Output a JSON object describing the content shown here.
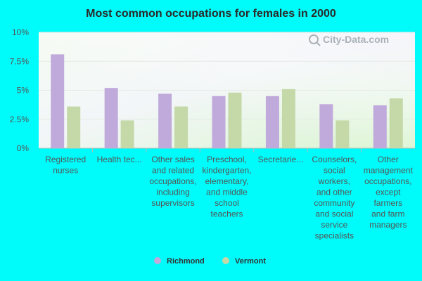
{
  "watermark": "City-Data.com",
  "colors": {
    "background": "#00fbfb",
    "richmond": "#c0aadb",
    "vermont": "#c5d9a8"
  },
  "chart_data": {
    "type": "bar",
    "title": "Most common occupations for females in 2000",
    "xlabel": "",
    "ylabel": "",
    "ylim": [
      0,
      10
    ],
    "yticks": [
      {
        "value": 0,
        "label": "0%"
      },
      {
        "value": 2.5,
        "label": "2.5%"
      },
      {
        "value": 5,
        "label": "5%"
      },
      {
        "value": 7.5,
        "label": "7.5%"
      },
      {
        "value": 10,
        "label": "10%"
      }
    ],
    "grid": true,
    "legend": "bottom",
    "categories": [
      [
        "Registered",
        "nurses"
      ],
      [
        "Health tec..."
      ],
      [
        "Other sales",
        "and related",
        "occupations,",
        "including",
        "supervisors"
      ],
      [
        "Preschool,",
        "kindergarten,",
        "elementary,",
        "and middle",
        "school",
        "teachers"
      ],
      [
        "Secretarie..."
      ],
      [
        "Counselors,",
        "social",
        "workers,",
        "and other",
        "community",
        "and social",
        "service",
        "specialists"
      ],
      [
        "Other",
        "management",
        "occupations,",
        "except",
        "farmers",
        "and farm",
        "managers"
      ]
    ],
    "series": [
      {
        "name": "Richmond",
        "color": "#c0aadb",
        "values": [
          8.1,
          5.2,
          4.7,
          4.5,
          4.5,
          3.8,
          3.7
        ]
      },
      {
        "name": "Vermont",
        "color": "#c5d9a8",
        "values": [
          3.6,
          2.4,
          3.6,
          4.8,
          5.1,
          2.4,
          4.3
        ]
      }
    ]
  }
}
